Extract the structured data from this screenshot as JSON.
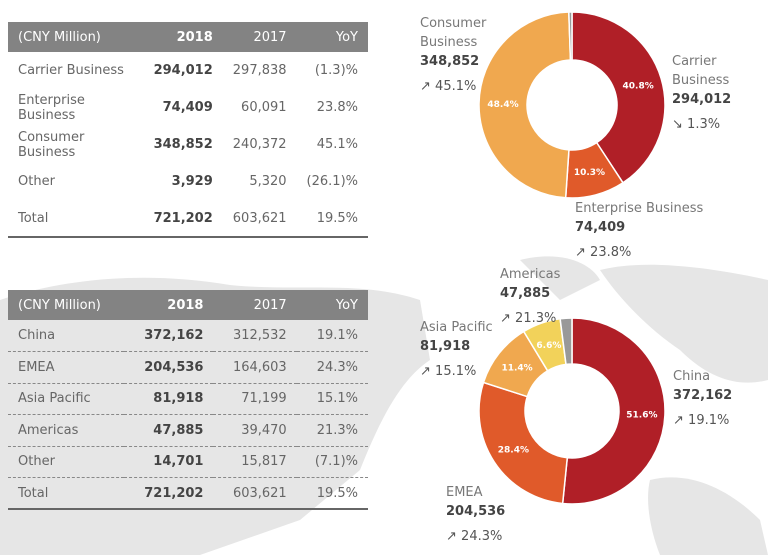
{
  "business_table": {
    "headers": [
      "(CNY Million)",
      "2018",
      "2017",
      "YoY"
    ],
    "rows": [
      [
        "Carrier Business",
        "294,012",
        "297,838",
        "(1.3)%"
      ],
      [
        "Enterprise Business",
        "74,409",
        "60,091",
        "23.8%"
      ],
      [
        "Consumer Business",
        "348,852",
        "240,372",
        "45.1%"
      ],
      [
        "Other",
        "3,929",
        "5,320",
        "(26.1)%"
      ],
      [
        "Total",
        "721,202",
        "603,621",
        "19.5%"
      ]
    ]
  },
  "region_table": {
    "headers": [
      "(CNY Million)",
      "2018",
      "2017",
      "YoY"
    ],
    "rows": [
      [
        "China",
        "372,162",
        "312,532",
        "19.1%"
      ],
      [
        "EMEA",
        "204,536",
        "164,603",
        "24.3%"
      ],
      [
        "Asia Pacific",
        "81,918",
        "71,199",
        "15.1%"
      ],
      [
        "Americas",
        "47,885",
        "39,470",
        "21.3%"
      ],
      [
        "Other",
        "14,701",
        "15,817",
        "(7.1)%"
      ],
      [
        "Total",
        "721,202",
        "603,621",
        "19.5%"
      ]
    ]
  },
  "chart_data": [
    {
      "type": "pie",
      "variant": "donut",
      "slices": [
        {
          "name": "Carrier Business",
          "value": 294012,
          "share_label": "40.8%",
          "change": "1.3%",
          "direction": "down",
          "color": "#b01f27"
        },
        {
          "name": "Enterprise Business",
          "value": 74409,
          "share_label": "10.3%",
          "change": "23.8%",
          "direction": "up",
          "color": "#e05a2a"
        },
        {
          "name": "Consumer Business",
          "value": 348852,
          "share_label": "48.4%",
          "change": "45.1%",
          "direction": "up",
          "color": "#f0a84f"
        },
        {
          "name": "Other",
          "value": 3929,
          "share_label": "",
          "color": "#999999"
        }
      ]
    },
    {
      "type": "pie",
      "variant": "donut",
      "slices": [
        {
          "name": "China",
          "value": 372162,
          "share_label": "51.6%",
          "change": "19.1%",
          "direction": "up",
          "color": "#b01f27"
        },
        {
          "name": "EMEA",
          "value": 204536,
          "share_label": "28.4%",
          "change": "24.3%",
          "direction": "up",
          "color": "#e05a2a"
        },
        {
          "name": "Asia Pacific",
          "value": 81918,
          "share_label": "11.4%",
          "change": "15.1%",
          "direction": "up",
          "color": "#f0a84f"
        },
        {
          "name": "Americas",
          "value": 47885,
          "share_label": "6.6%",
          "change": "21.3%",
          "direction": "up",
          "color": "#f2d25a"
        },
        {
          "name": "Other",
          "value": 14701,
          "share_label": "",
          "color": "#999999"
        }
      ]
    }
  ],
  "arrows": {
    "up": "↗",
    "down": "↘"
  }
}
